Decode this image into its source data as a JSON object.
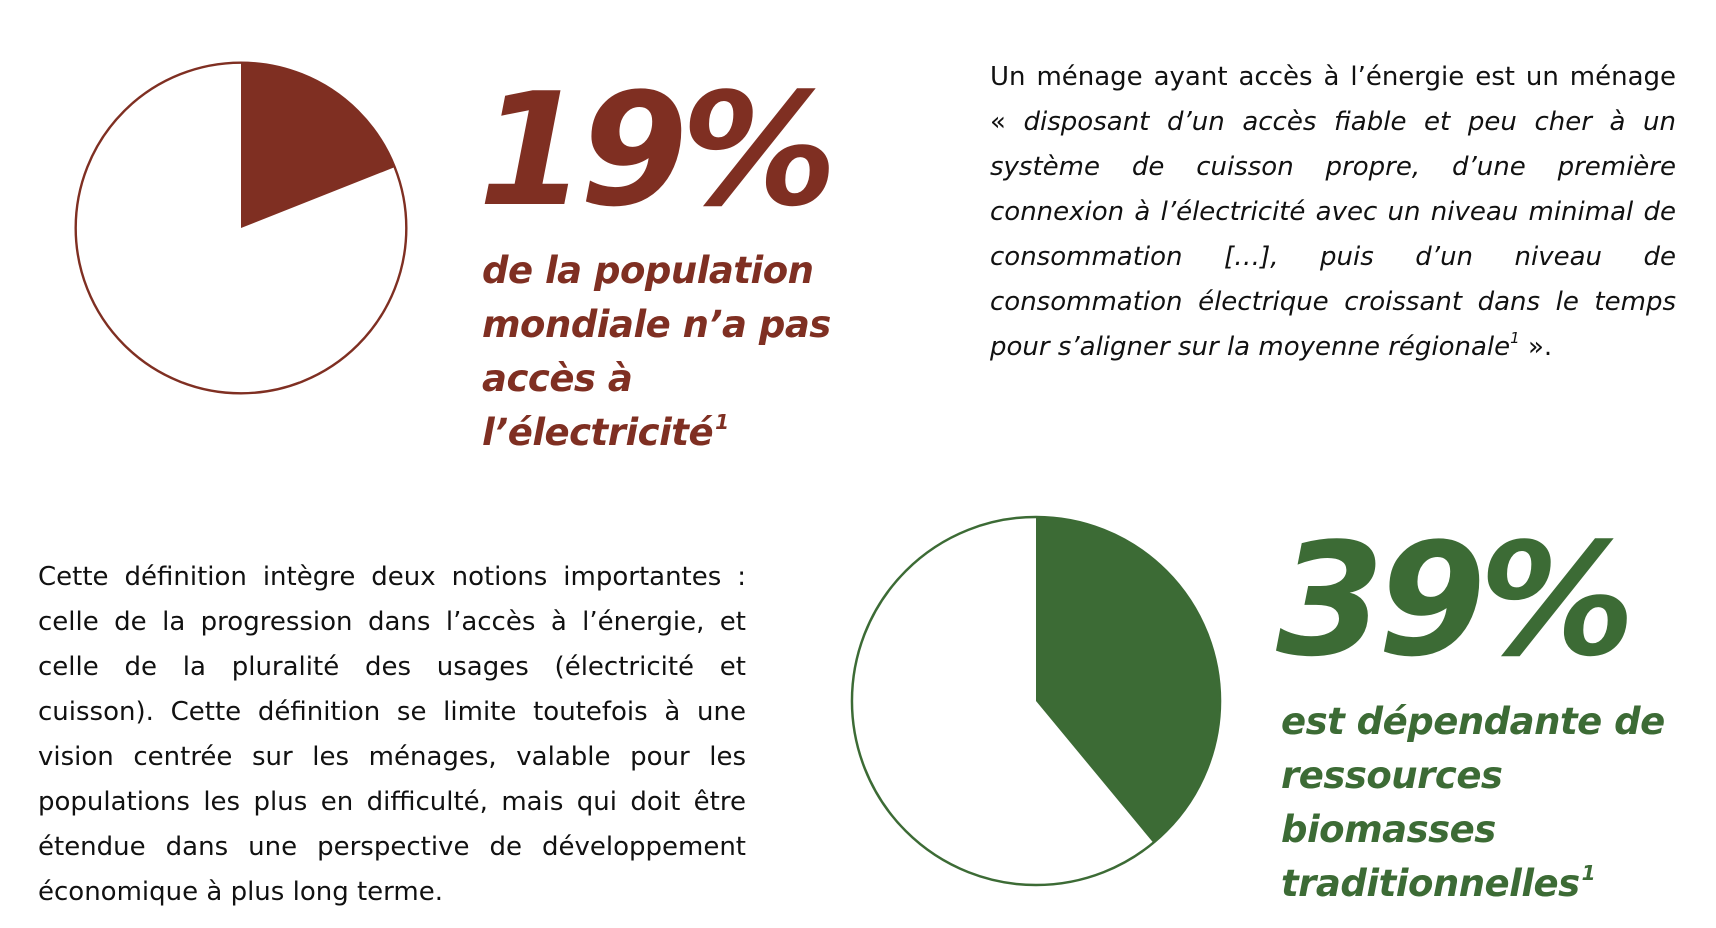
{
  "colors": {
    "rust": "#7f2f22",
    "green": "#3c6b35",
    "background": "#ffffff",
    "text": "#111111"
  },
  "chart_data": [
    {
      "type": "pie",
      "title": "19%",
      "slices": [
        {
          "label": "de la population mondiale n’a pas accès à l’électricité",
          "value": 19,
          "color": "#7f2f22",
          "filled": true
        },
        {
          "label": "",
          "value": 81,
          "color": "#ffffff",
          "filled": false
        }
      ],
      "start": "12 o'clock",
      "direction": "clockwise"
    },
    {
      "type": "pie",
      "title": "39%",
      "slices": [
        {
          "label": "est dépendante de ressources biomasses traditionnelles",
          "value": 39,
          "color": "#3c6b35",
          "filled": true
        },
        {
          "label": "",
          "value": 61,
          "color": "#ffffff",
          "filled": false
        }
      ],
      "start": "12 o'clock",
      "direction": "clockwise"
    }
  ],
  "stat1": {
    "value": "19%",
    "caption": "de la population mondiale n’a pas accès à l’électricité",
    "footnote": "1"
  },
  "stat2": {
    "value": "39%",
    "caption": "est dépendante de ressources biomasses traditionnelles",
    "footnote": "1"
  },
  "definition": {
    "intro": "Un ménage ayant accès à l’énergie est un ménage ",
    "quote_open": "« ",
    "quote": "disposant d’un accès fiable et peu cher à un système de cuisson propre, d’une première connexion à l’électricité avec un niveau minimal de consommation […], puis d’un niveau de consommation électrique croissant dans le temps pour s’aligner sur la moyenne régionale",
    "footnote": "1",
    "quote_close": " »."
  },
  "notions": {
    "text": "Cette définition intègre deux notions importantes : celle de la progression dans l’accès à l’énergie, et celle de la pluralité des usages (électricité et cuisson). Cette définition se limite toutefois à une vision centrée sur les ménages, valable pour les populations les plus en difficulté, mais qui doit être étendue dans une perspective de développement économique à plus long terme."
  }
}
